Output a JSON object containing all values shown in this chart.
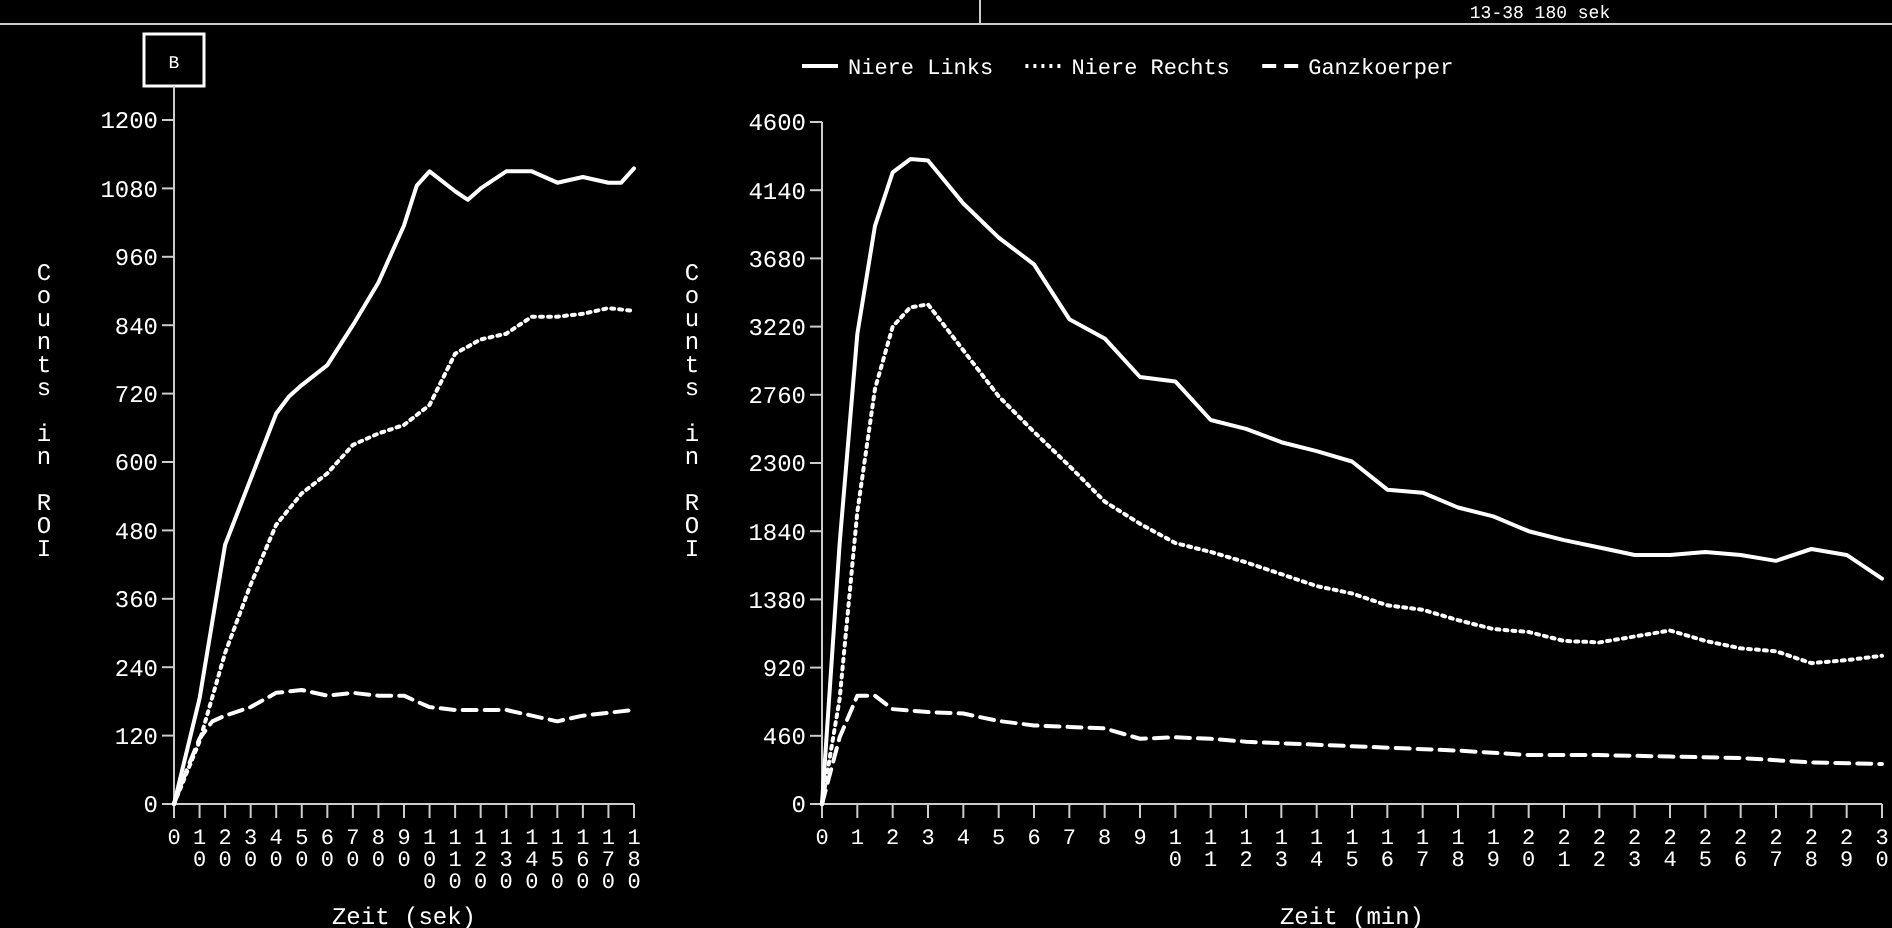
{
  "chart_data": [
    {
      "type": "line",
      "title": "B",
      "annotations": [
        "13-38  180 sek"
      ],
      "xlabel": "Zeit (sek)",
      "ylabel": "Counts in ROI",
      "grid": false,
      "xlim": [
        0,
        180
      ],
      "xticks": [
        0,
        10,
        20,
        30,
        40,
        50,
        60,
        70,
        80,
        90,
        100,
        110,
        120,
        130,
        140,
        150,
        160,
        170,
        180
      ],
      "ylim": [
        0,
        1200
      ],
      "yticks": [
        0,
        120,
        240,
        360,
        480,
        600,
        720,
        840,
        960,
        1080,
        1200
      ],
      "series": [
        {
          "color": "#ffffff",
          "line_style": "solid",
          "x": [
            0,
            10,
            20,
            30,
            40,
            45,
            50,
            60,
            70,
            80,
            90,
            95,
            100,
            110,
            115,
            120,
            130,
            140,
            150,
            160,
            170,
            175,
            180
          ],
          "values": [
            0,
            185,
            455,
            570,
            685,
            715,
            735,
            770,
            840,
            915,
            1015,
            1085,
            1110,
            1075,
            1060,
            1080,
            1110,
            1110,
            1090,
            1100,
            1090,
            1090,
            1115
          ]
        },
        {
          "color": "#ffffff",
          "line_style": "dotted",
          "x": [
            0,
            10,
            20,
            30,
            40,
            50,
            60,
            70,
            80,
            90,
            100,
            110,
            120,
            130,
            140,
            150,
            160,
            170,
            180
          ],
          "values": [
            0,
            110,
            265,
            385,
            490,
            545,
            580,
            630,
            650,
            665,
            700,
            790,
            815,
            825,
            855,
            855,
            860,
            870,
            865
          ]
        },
        {
          "color": "#ffffff",
          "line_style": "dashed",
          "x": [
            0,
            5,
            10,
            15,
            20,
            30,
            40,
            50,
            60,
            70,
            80,
            90,
            100,
            110,
            120,
            130,
            140,
            150,
            160,
            170,
            180
          ],
          "values": [
            0,
            60,
            115,
            145,
            155,
            170,
            195,
            200,
            190,
            195,
            190,
            190,
            170,
            165,
            165,
            165,
            155,
            145,
            155,
            160,
            165
          ]
        }
      ]
    },
    {
      "type": "line",
      "xlabel": "Zeit (min)",
      "ylabel": "Counts in ROI",
      "legend": "top",
      "grid": false,
      "xlim": [
        0,
        30
      ],
      "xticks": [
        0,
        1,
        2,
        3,
        4,
        5,
        6,
        7,
        8,
        9,
        10,
        11,
        12,
        13,
        14,
        15,
        16,
        17,
        18,
        19,
        20,
        21,
        22,
        23,
        24,
        25,
        26,
        27,
        28,
        29,
        30
      ],
      "ylim": [
        0,
        4600
      ],
      "yticks": [
        0,
        460,
        920,
        1380,
        1840,
        2300,
        2760,
        3220,
        3680,
        4140,
        4600
      ],
      "series": [
        {
          "name": "Niere Links",
          "color": "#ffffff",
          "line_style": "solid",
          "x": [
            0,
            0.5,
            1,
            1.5,
            2,
            2.5,
            3,
            4,
            5,
            6,
            7,
            8,
            9,
            10,
            11,
            12,
            13,
            14,
            15,
            16,
            17,
            18,
            19,
            20,
            21,
            22,
            23,
            24,
            25,
            26,
            27,
            28,
            29,
            30
          ],
          "values": [
            0,
            1760,
            3170,
            3900,
            4260,
            4350,
            4340,
            4050,
            3820,
            3640,
            3270,
            3140,
            2880,
            2850,
            2590,
            2530,
            2440,
            2380,
            2310,
            2120,
            2100,
            2000,
            1940,
            1840,
            1780,
            1730,
            1680,
            1680,
            1700,
            1680,
            1640,
            1720,
            1680,
            1520
          ]
        },
        {
          "name": "Niere Rechts",
          "color": "#ffffff",
          "line_style": "dotted",
          "x": [
            0,
            0.5,
            1,
            1.5,
            2,
            2.5,
            3,
            4,
            5,
            6,
            7,
            8,
            9,
            10,
            11,
            12,
            13,
            14,
            15,
            16,
            17,
            18,
            19,
            20,
            21,
            22,
            23,
            24,
            25,
            26,
            27,
            28,
            29,
            30
          ],
          "values": [
            0,
            710,
            1970,
            2800,
            3220,
            3350,
            3370,
            3060,
            2750,
            2510,
            2280,
            2040,
            1890,
            1760,
            1700,
            1630,
            1550,
            1470,
            1420,
            1340,
            1310,
            1240,
            1180,
            1160,
            1100,
            1090,
            1130,
            1170,
            1100,
            1050,
            1030,
            950,
            970,
            1000
          ]
        },
        {
          "name": "Ganzkoerper",
          "color": "#ffffff",
          "line_style": "dashed",
          "x": [
            0,
            0.5,
            1,
            1.5,
            2,
            3,
            4,
            5,
            6,
            7,
            8,
            9,
            10,
            11,
            12,
            14,
            16,
            18,
            20,
            22,
            24,
            26,
            28,
            30
          ],
          "values": [
            0,
            450,
            730,
            730,
            640,
            620,
            610,
            560,
            530,
            520,
            510,
            440,
            450,
            440,
            420,
            400,
            380,
            360,
            330,
            330,
            320,
            310,
            280,
            270
          ]
        }
      ]
    }
  ]
}
